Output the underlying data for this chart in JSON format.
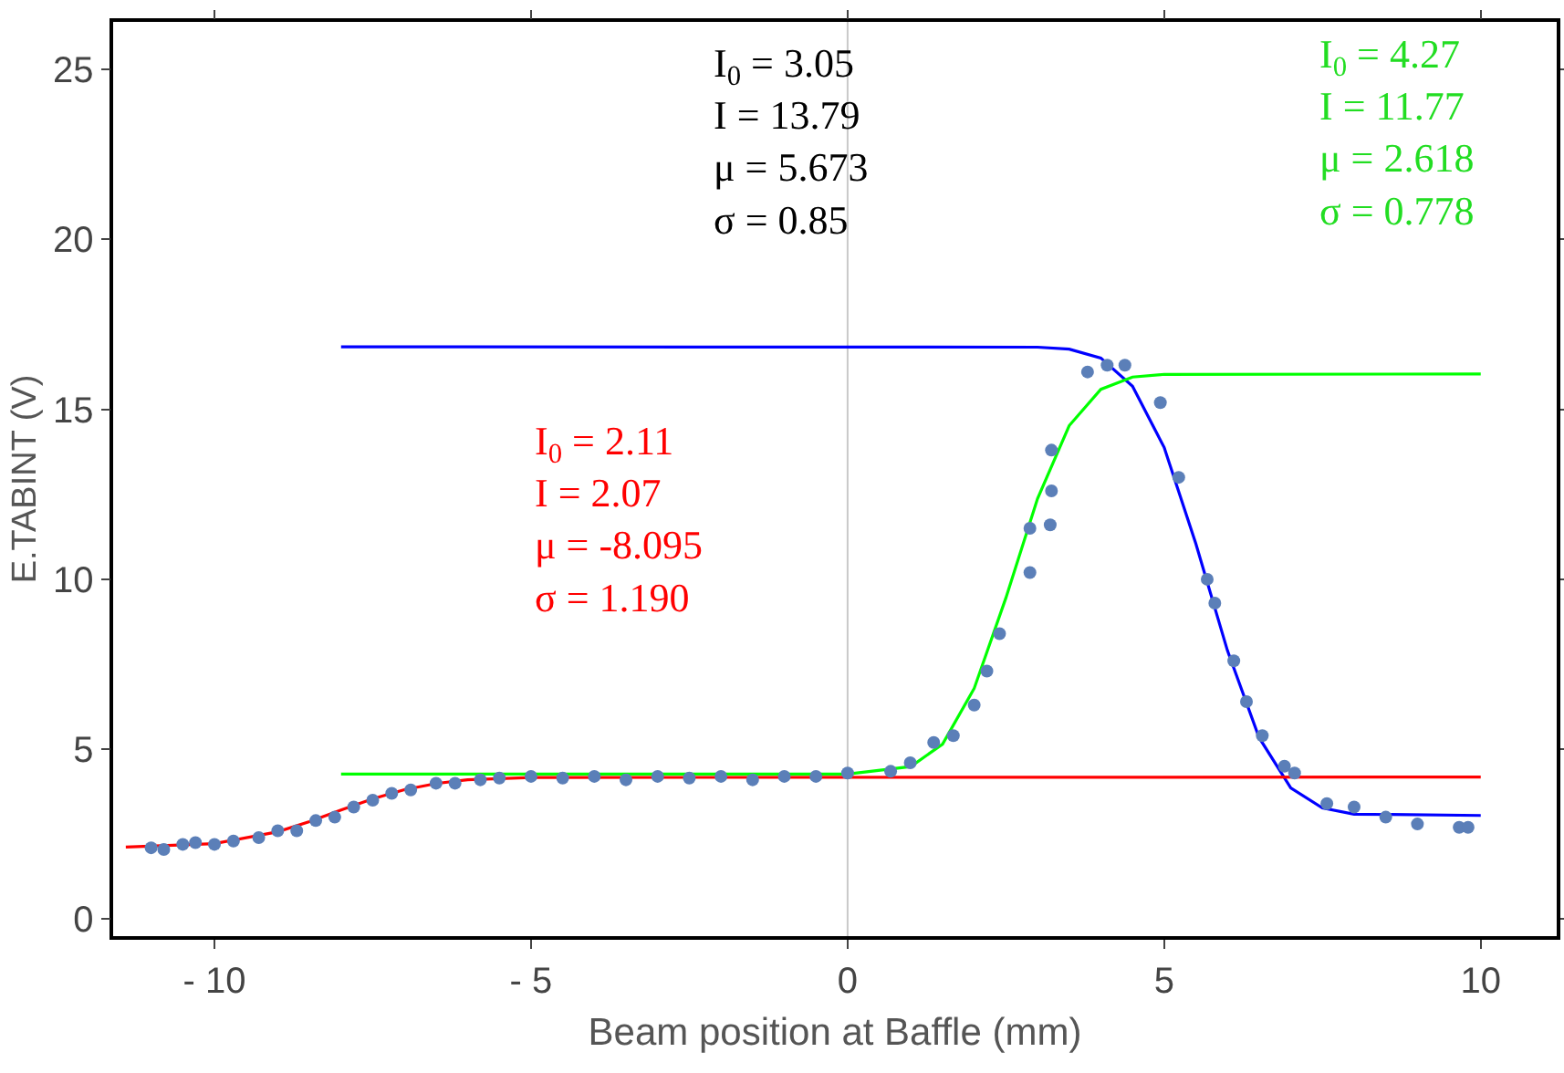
{
  "chart_data": {
    "type": "scatter",
    "xlabel": "Beam position at Baffle (mm)",
    "ylabel": "E.TABINT (V)",
    "xlim": [
      -11.6,
      11.2
    ],
    "ylim": [
      -0.5,
      26.4
    ],
    "xticks": [
      {
        "value": -10,
        "label": "- 10"
      },
      {
        "value": -5,
        "label": "- 5"
      },
      0,
      5,
      10
    ],
    "yticks": [
      0,
      5,
      10,
      15,
      20,
      25
    ],
    "grid": false,
    "ref_lines": [
      {
        "axis": "x",
        "value": 0,
        "color": "#c8c8c8"
      }
    ],
    "annotations": [
      "I$_{0}$ = 3.05\nI = 13.79\nμ = 5.673\nσ = 0.85",
      "I$_{0}$ = 4.27\nI = 11.77\nμ = 2.618\nσ = 0.778",
      "I$_{0}$ = 2.11\nI = 2.07\nμ = -8.095\nσ = 1.190"
    ],
    "series": [
      {
        "marker": "circle",
        "color": "#5b7fb8",
        "x": [
          -11,
          -10.8,
          -10.5,
          -10.3,
          -10,
          -9.7,
          -9.3,
          -9,
          -8.7,
          -8.4,
          -8.1,
          -7.8,
          -7.5,
          -7.2,
          -6.9,
          -6.5,
          -6.2,
          -5.8,
          -5.5,
          -5,
          -4.5,
          -4,
          -3.5,
          -3,
          -2.5,
          -2,
          -1.5,
          -1,
          -0.5,
          0,
          0.68,
          0.99,
          1.36,
          1.67,
          2.0,
          2.2,
          2.4,
          2.88,
          2.88,
          3.2,
          3.22,
          3.22,
          3.79,
          4.1,
          4.38,
          4.94,
          5.23,
          5.68,
          5.8,
          6.1,
          6.3,
          6.55,
          6.9,
          7.06,
          7.57,
          8.0,
          8.5,
          9.0,
          9.66,
          9.8
        ],
        "values": [
          2.1,
          2.05,
          2.2,
          2.25,
          2.2,
          2.3,
          2.4,
          2.6,
          2.6,
          2.9,
          3.0,
          3.3,
          3.5,
          3.7,
          3.8,
          4.0,
          4.0,
          4.1,
          4.15,
          4.2,
          4.15,
          4.2,
          4.1,
          4.2,
          4.15,
          4.2,
          4.1,
          4.2,
          4.2,
          4.3,
          4.35,
          4.6,
          5.2,
          5.4,
          6.3,
          7.3,
          8.4,
          10.2,
          11.5,
          11.6,
          12.6,
          13.8,
          16.1,
          16.3,
          16.3,
          15.2,
          13.0,
          10.0,
          9.3,
          7.6,
          6.4,
          5.4,
          4.5,
          4.3,
          3.4,
          3.3,
          3.0,
          2.8,
          2.7,
          2.7
        ]
      },
      {
        "type": "line",
        "marker": "none",
        "color": "#0000ff",
        "x": [
          -8,
          3,
          3.5,
          4,
          4.5,
          5,
          5.5,
          6,
          6.5,
          7,
          7.5,
          8,
          10
        ],
        "values": [
          16.84,
          16.83,
          16.77,
          16.51,
          15.68,
          13.88,
          11.05,
          7.9,
          5.34,
          3.86,
          3.27,
          3.09,
          3.05
        ]
      },
      {
        "type": "line",
        "marker": "none",
        "color": "#00ff00",
        "x": [
          -8,
          0,
          1,
          1.5,
          2,
          2.5,
          3,
          3.5,
          4,
          4.5,
          5,
          10
        ],
        "values": [
          4.27,
          4.27,
          4.49,
          5.15,
          6.79,
          9.45,
          12.37,
          14.52,
          15.59,
          15.95,
          16.03,
          16.04
        ]
      },
      {
        "type": "line",
        "marker": "none",
        "color": "#ff0000",
        "x": [
          -11.4,
          -10,
          -9,
          -8.5,
          -8,
          -7.5,
          -7,
          -6.5,
          -6,
          -5,
          10
        ],
        "values": [
          2.12,
          2.22,
          2.57,
          2.87,
          3.21,
          3.54,
          3.81,
          3.99,
          4.1,
          4.17,
          4.18
        ]
      }
    ]
  }
}
